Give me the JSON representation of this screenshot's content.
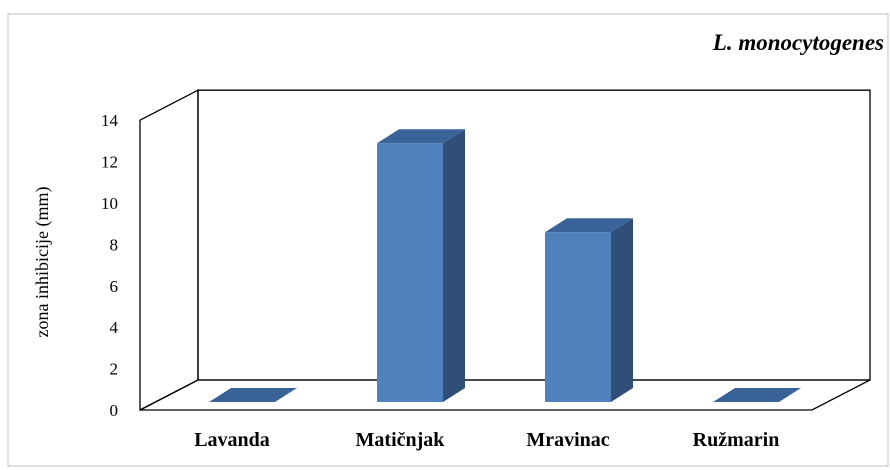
{
  "chart_data": {
    "type": "bar",
    "title": "L. monocytogenes",
    "xlabel": "",
    "ylabel": "zona inhibicije (mm)",
    "categories": [
      "Lavanda",
      "Matičnjak",
      "Mravinac",
      "Ružmarin"
    ],
    "values": [
      0,
      12.5,
      8.2,
      0
    ],
    "ylim": [
      0,
      14
    ],
    "yticks": [
      "0",
      "2",
      "4",
      "6",
      "8",
      "10",
      "12",
      "14"
    ],
    "grid": false,
    "legend": "none",
    "bar_color": "#4f81bd",
    "bar_side_color": "#2f4f79",
    "bar_top_color": "#3a6399"
  }
}
